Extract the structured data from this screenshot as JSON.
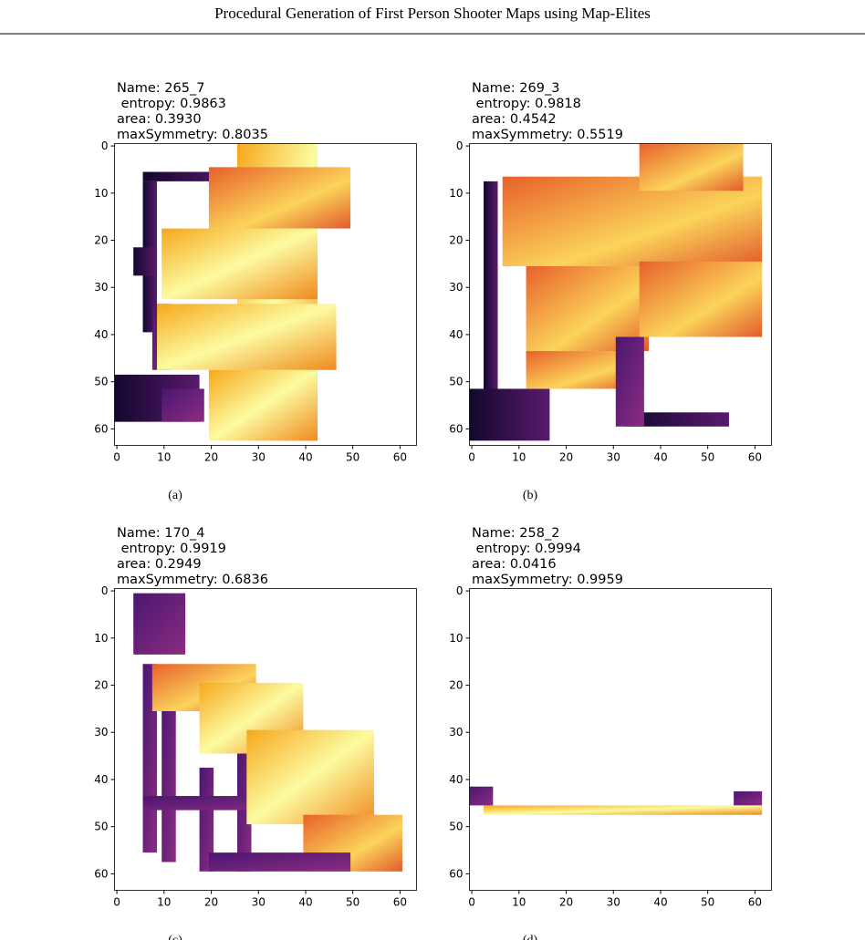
{
  "header": {
    "title": "Procedural Generation of First Person Shooter Maps using Map-Elites"
  },
  "figure": {
    "xticks": [
      0,
      10,
      20,
      30,
      40,
      50,
      60
    ],
    "yticks": [
      0,
      10,
      20,
      30,
      40,
      50,
      60
    ],
    "panels": [
      {
        "name": "Name: 265_7",
        "entropy": " entropy: 0.9863",
        "area": "area: 0.3930",
        "max_symmetry": "maxSymmetry: 0.8035",
        "caption": "(a)"
      },
      {
        "name": "Name: 269_3",
        "entropy": " entropy: 0.9818",
        "area": "area: 0.4542",
        "max_symmetry": "maxSymmetry: 0.5519",
        "caption": "(b)"
      },
      {
        "name": "Name: 170_4",
        "entropy": " entropy: 0.9919",
        "area": "area: 0.2949",
        "max_symmetry": "maxSymmetry: 0.6836",
        "caption": "(c)"
      },
      {
        "name": "Name: 258_2",
        "entropy": " entropy: 0.9994",
        "area": "area: 0.0416",
        "max_symmetry": "maxSymmetry: 0.9959",
        "caption": "(d)"
      }
    ]
  }
}
